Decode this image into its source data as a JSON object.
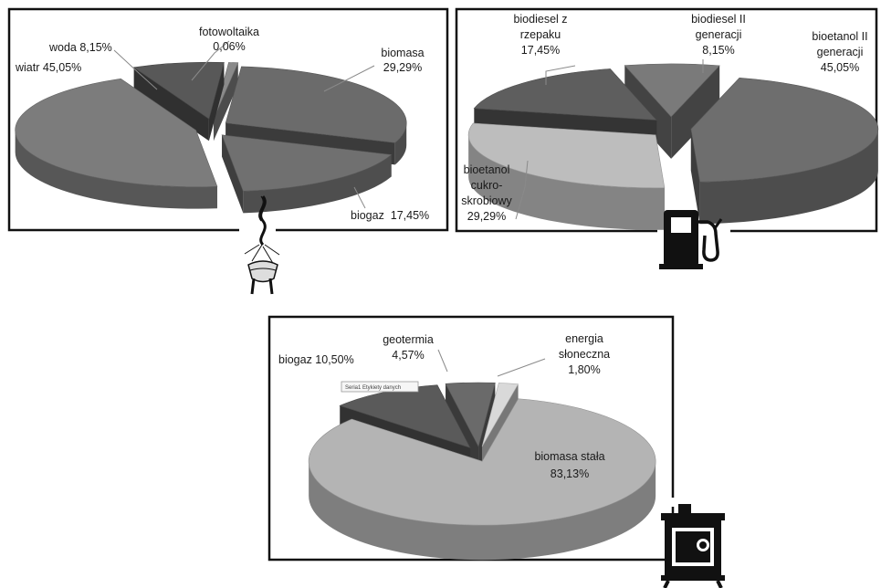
{
  "chart_data": [
    {
      "type": "pie",
      "style": "exploded 3D pie",
      "categories": [
        "biomasa",
        "biogaz",
        "wiatr",
        "woda",
        "fotowoltaika"
      ],
      "values": [
        29.29,
        17.45,
        45.05,
        8.15,
        0.06
      ],
      "labels": [
        [
          "biomasa",
          "29,29%"
        ],
        [
          "biogaz  17,45%"
        ],
        [
          "wiatr 45,05%"
        ],
        [
          "woda 8,15%"
        ],
        [
          "fotowoltaika",
          "0,06%"
        ]
      ],
      "colors": [
        "#6b6b6b",
        "#707070",
        "#7c7c7c",
        "#585858",
        "#8a8a8a"
      ],
      "icon": "power-plug-icon"
    },
    {
      "type": "pie",
      "style": "exploded 3D pie",
      "categories": [
        "bioetanol II generacji",
        "bioetanol cukro-skrobiowy",
        "biodiesel z rzepaku",
        "biodiesel II generacji"
      ],
      "values": [
        45.05,
        29.29,
        17.45,
        8.15
      ],
      "labels": [
        [
          "bioetanol II",
          "generacji",
          "45,05%"
        ],
        [
          "bioetanol",
          "cukro-",
          "skrobiowy",
          "29,29%"
        ],
        [
          "biodiesel z",
          "rzepaku",
          "17,45%"
        ],
        [
          "biodiesel II",
          "generacji",
          "8,15%"
        ]
      ],
      "colors": [
        "#6e6e6e",
        "#bdbdbd",
        "#5e5e5e",
        "#7a7a7a"
      ],
      "icon": "fuel-pump-icon"
    },
    {
      "type": "pie",
      "style": "exploded 3D pie",
      "categories": [
        "biomasa stała",
        "biogaz",
        "geotermia",
        "energia słoneczna"
      ],
      "values": [
        83.13,
        10.5,
        4.57,
        1.8
      ],
      "labels": [
        [
          "biomasa stała",
          "83,13%"
        ],
        [
          "biogaz 10,50%"
        ],
        [
          "geotermia",
          "4,57%"
        ],
        [
          "energia",
          "słoneczna",
          "1,80%"
        ]
      ],
      "colors": [
        "#b4b4b4",
        "#5a5a5a",
        "#6a6a6a",
        "#d9d9d9"
      ],
      "tooltip": "Seria1 Etykiety danych",
      "icon": "stove-icon"
    }
  ]
}
